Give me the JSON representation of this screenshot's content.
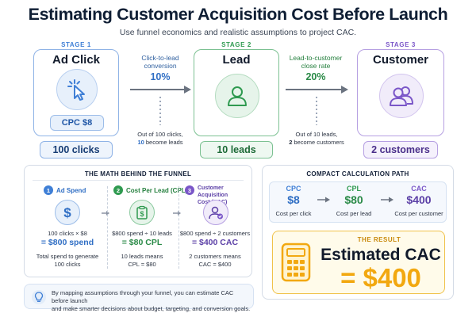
{
  "header": {
    "title": "Estimating Customer Acquisition Cost Before Launch",
    "subtitle": "Use funnel economics and realistic assumptions to project CAC."
  },
  "stages": [
    {
      "label": "STAGE 1",
      "name": "Ad Click",
      "icon": "cursor-click-icon",
      "extra": "CPC $8",
      "count": "100 clicks",
      "color": "#3f7fd6"
    },
    {
      "label": "STAGE 2",
      "name": "Lead",
      "icon": "person-icon",
      "count": "10 leads",
      "color": "#2f9a50"
    },
    {
      "label": "STAGE 3",
      "name": "Customer",
      "icon": "people-icon",
      "count": "2 customers",
      "color": "#7a56c8"
    }
  ],
  "conversions": [
    {
      "label_line1": "Click-to-lead",
      "label_line2": "conversion",
      "percent": "10%",
      "note_line1": "Out of 100 clicks,",
      "note_bold": "10",
      "note_line2_rest": " become leads"
    },
    {
      "label_line1": "Lead-to-customer",
      "label_line2": "close rate",
      "percent": "20%",
      "note_line1": "Out of 10 leads,",
      "note_bold": "2",
      "note_line2_rest": " become customers"
    }
  ],
  "math": {
    "title": "THE MATH BEHIND THE FUNNEL",
    "columns": [
      {
        "number": "1",
        "heading_line1": "Ad Spend",
        "heading_line2": "",
        "icon": "dollar-icon",
        "line": "100 clicks × $8",
        "result": "= $800 spend",
        "desc_line1": "Total spend to generate",
        "desc_line2": "100 clicks"
      },
      {
        "number": "2",
        "heading_line1": "Cost Per Lead (CPL)",
        "heading_line2": "",
        "icon": "clipboard-dollar-icon",
        "line": "$800 spend ÷ 10 leads",
        "result": "= $80 CPL",
        "desc_line1": "10 leads means",
        "desc_line2": "CPL = $80"
      },
      {
        "number": "3",
        "heading_line1": "Customer Acquisition",
        "heading_line2": "Cost (CAC)",
        "icon": "user-check-icon",
        "line": "$800 spend ÷ 2 customers",
        "result": "= $400 CAC",
        "desc_line1": "2 customers means",
        "desc_line2": "CAC = $400"
      }
    ]
  },
  "compact": {
    "title": "COMPACT CALCULATION PATH",
    "items": [
      {
        "head": "CPC",
        "value": "$8",
        "desc": "Cost per click"
      },
      {
        "head": "CPL",
        "value": "$80",
        "desc": "Cost per lead"
      },
      {
        "head": "CAC",
        "value": "$400",
        "desc": "Cost per customer"
      }
    ]
  },
  "result": {
    "label": "THE RESULT",
    "title": "Estimated CAC",
    "value": "= $400",
    "icon": "calculator-icon"
  },
  "footer": {
    "icon": "lightbulb-icon",
    "line1": "By mapping assumptions through your funnel, you can estimate CAC before launch",
    "line2": "and make smarter decisions about budget, targeting, and conversion goals."
  },
  "colors": {
    "blue": "#3f7fd6",
    "green": "#2f9a50",
    "purple": "#7a56c8",
    "gold": "#f2a810",
    "navy": "#15223a"
  }
}
